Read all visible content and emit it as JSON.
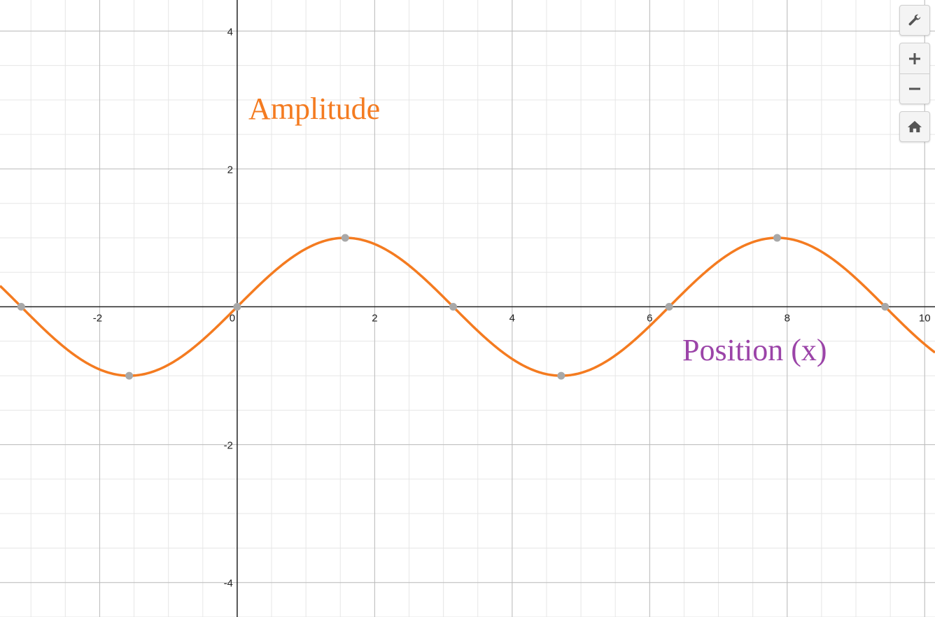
{
  "chart_data": {
    "type": "line",
    "title": "",
    "xlabel": "",
    "ylabel": "",
    "xlim": [
      -3.45,
      10.15
    ],
    "ylim": [
      -4.5,
      4.45
    ],
    "x_ticks": [
      -2,
      0,
      2,
      4,
      6,
      8,
      10
    ],
    "y_ticks": [
      -4,
      -2,
      2,
      4
    ],
    "x_tick_labels": [
      "-2",
      "0",
      "2",
      "4",
      "6",
      "8",
      "10"
    ],
    "y_tick_labels": [
      "-4",
      "-2",
      "2",
      "4"
    ],
    "grid": true,
    "series": [
      {
        "name": "",
        "function": "sin(x)",
        "color": "#f47b20"
      }
    ],
    "points": [
      {
        "x": -3.1416,
        "y": 0
      },
      {
        "x": -1.5708,
        "y": -1
      },
      {
        "x": 0,
        "y": 0
      },
      {
        "x": 1.5708,
        "y": 1
      },
      {
        "x": 3.1416,
        "y": 0
      },
      {
        "x": 4.7124,
        "y": -1
      },
      {
        "x": 6.2832,
        "y": 0
      },
      {
        "x": 7.854,
        "y": 1
      },
      {
        "x": 9.4248,
        "y": 0
      }
    ],
    "point_color": "#a8a8a8",
    "annotations": [
      {
        "text": "Amplitude",
        "color": "#f47b20"
      },
      {
        "text": "Position (x)",
        "color": "#9b44a8"
      }
    ]
  },
  "toolbar": {
    "settings_icon": "wrench-icon",
    "zoom_in_icon": "plus-icon",
    "zoom_out_icon": "minus-icon",
    "home_icon": "home-icon"
  }
}
